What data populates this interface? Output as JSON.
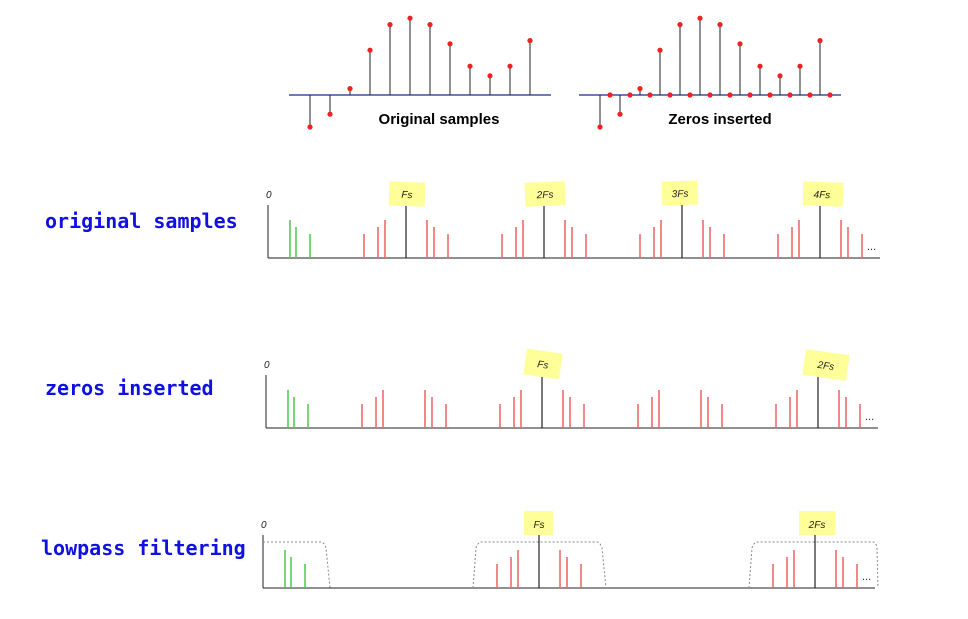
{
  "top": {
    "original_caption": "Original samples",
    "zeros_caption": "Zeros inserted",
    "original_values": [
      -1.0,
      -0.6,
      0.2,
      1.4,
      2.2,
      2.4,
      2.2,
      1.6,
      0.9,
      0.6,
      0.9,
      1.7
    ],
    "zeros_values": [
      -1.0,
      0,
      -0.6,
      0,
      0.2,
      0,
      1.4,
      0,
      2.2,
      0,
      2.4,
      0,
      2.2,
      0,
      1.6,
      0,
      0.9,
      0,
      0.6,
      0,
      0.9,
      0,
      1.7,
      0
    ]
  },
  "rows": [
    {
      "label": "original samples",
      "zero_label": "0",
      "ellipsis": "...",
      "notes": [
        "Fs",
        "2Fs",
        "3Fs",
        "4Fs"
      ],
      "show_filter": false
    },
    {
      "label": "zeros inserted",
      "zero_label": "0",
      "ellipsis": "...",
      "notes": [
        "Fs",
        "2Fs"
      ],
      "show_filter": false
    },
    {
      "label": "lowpass filtering",
      "zero_label": "0",
      "ellipsis": "...",
      "notes": [
        "Fs",
        "2Fs"
      ],
      "show_filter": true
    }
  ],
  "colors": {
    "label": "#1010e0",
    "baseband": "#55cc55",
    "image": "#ee6a6a",
    "sample_dot": "#ee2222",
    "top_axis": "#1a2a8a",
    "note_bg": "#ffff99",
    "filter": "#888888"
  }
}
